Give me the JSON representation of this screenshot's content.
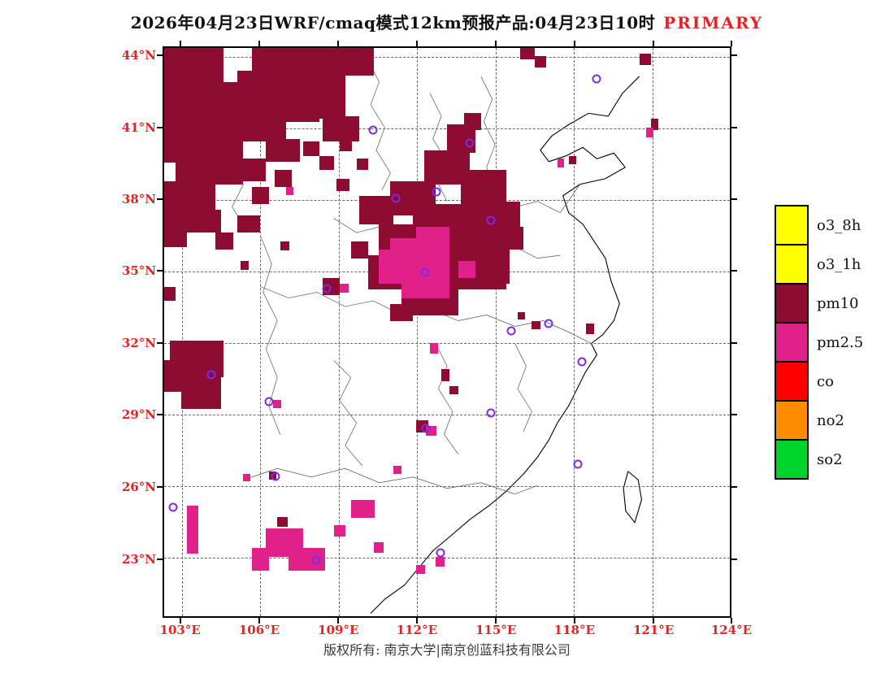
{
  "title": {
    "text": "2026年04月23日WRF/cmaq模式12km预报产品:04月23日10时",
    "highlight": "PRIMARY"
  },
  "footer": {
    "text": "版权所有: 南京大学|南京创蓝科技有限公司"
  },
  "axes": {
    "lat_labels": [
      {
        "text": "44°N",
        "y": 1.6
      },
      {
        "text": "41°N",
        "y": 14.2
      },
      {
        "text": "38°N",
        "y": 26.7
      },
      {
        "text": "35°N",
        "y": 39.3
      },
      {
        "text": "32°N",
        "y": 51.9
      },
      {
        "text": "29°N",
        "y": 64.5
      },
      {
        "text": "26°N",
        "y": 77.1
      },
      {
        "text": "23°N",
        "y": 89.7
      }
    ],
    "lon_labels": [
      {
        "text": "103°E",
        "x": 3.1
      },
      {
        "text": "106°E",
        "x": 17.0
      },
      {
        "text": "109°E",
        "x": 30.9
      },
      {
        "text": "112°E",
        "x": 44.7
      },
      {
        "text": "115°E",
        "x": 58.6
      },
      {
        "text": "118°E",
        "x": 72.4
      },
      {
        "text": "121°E",
        "x": 86.3
      },
      {
        "text": "124°E",
        "x": 100.0
      }
    ]
  },
  "legend": {
    "items": [
      {
        "label": "o3_8h",
        "color": "#ffff00"
      },
      {
        "label": "o3_1h",
        "color": "#ffff00"
      },
      {
        "label": "pm10",
        "color": "#8e0b32"
      },
      {
        "label": "pm2.5",
        "color": "#e0218a"
      },
      {
        "label": "co",
        "color": "#ff0000"
      },
      {
        "label": "no2",
        "color": "#ff8c00"
      },
      {
        "label": "so2",
        "color": "#00d42a"
      }
    ]
  },
  "map": {
    "colors": {
      "pm10": "#8e0b32",
      "pm25": "#e0218a",
      "station": "#7d2ae8",
      "axis_text": "#e62222"
    },
    "patches": {
      "pm10": [
        [
          0,
          0,
          10.5,
          6.5
        ],
        [
          0,
          6,
          14,
          8.5
        ],
        [
          15.5,
          0,
          21.5,
          4.8
        ],
        [
          13,
          4,
          19,
          5
        ],
        [
          9.5,
          8,
          18,
          5
        ],
        [
          5.5,
          11.5,
          16,
          5
        ],
        [
          0,
          14,
          14,
          6.2
        ],
        [
          2,
          19,
          12,
          5
        ],
        [
          0,
          23.5,
          9,
          6
        ],
        [
          3,
          28.5,
          7,
          4
        ],
        [
          0,
          29,
          4,
          6
        ],
        [
          23.5,
          8.5,
          8.5,
          4
        ],
        [
          28,
          12,
          6.5,
          4.5
        ],
        [
          18,
          16,
          6,
          4
        ],
        [
          12,
          19.5,
          6,
          4
        ],
        [
          19.5,
          21.5,
          3,
          3
        ],
        [
          15.5,
          24.5,
          3,
          3
        ],
        [
          9,
          32.5,
          3.2,
          3
        ],
        [
          13,
          29.5,
          4,
          3
        ],
        [
          24.5,
          16.5,
          3,
          2.5
        ],
        [
          27.5,
          19,
          2.5,
          2.5
        ],
        [
          31,
          16,
          2.2,
          2.2
        ],
        [
          34,
          19.5,
          2,
          2
        ],
        [
          30.5,
          23,
          2.2,
          2.2
        ],
        [
          63,
          0,
          2.5,
          2
        ],
        [
          65.5,
          1.5,
          2,
          2
        ],
        [
          84,
          1,
          2,
          2
        ],
        [
          86,
          12.5,
          1.3,
          2
        ],
        [
          71.5,
          19,
          1.4,
          1.4
        ],
        [
          50,
          13.5,
          5,
          5
        ],
        [
          53,
          11.5,
          3,
          3
        ],
        [
          46,
          18,
          8,
          6
        ],
        [
          52.5,
          21.5,
          8,
          6
        ],
        [
          40,
          23.5,
          8,
          6
        ],
        [
          34.5,
          26,
          6,
          5
        ],
        [
          44,
          27.5,
          14,
          7.5
        ],
        [
          56.5,
          27,
          6.5,
          8
        ],
        [
          38,
          31,
          8,
          6
        ],
        [
          48,
          34.5,
          12.5,
          8
        ],
        [
          36,
          36.5,
          6,
          6
        ],
        [
          42,
          42,
          10,
          5
        ],
        [
          56,
          35.5,
          5,
          6
        ],
        [
          60.5,
          31.5,
          3,
          4
        ],
        [
          28,
          40.5,
          3,
          3
        ],
        [
          33,
          34,
          3,
          3
        ],
        [
          40,
          45,
          4,
          3
        ],
        [
          1,
          51.5,
          9.5,
          6.5
        ],
        [
          3,
          57.5,
          7,
          6
        ],
        [
          0,
          55,
          3,
          5.5
        ],
        [
          0,
          42,
          2,
          2.5
        ],
        [
          13.5,
          37.5,
          1.5,
          1.5
        ],
        [
          20.5,
          34,
          1.6,
          1.6
        ],
        [
          44.5,
          65.5,
          2.2,
          2.2
        ],
        [
          49,
          56.5,
          1.5,
          2.2
        ],
        [
          50.5,
          59.5,
          1.5,
          1.5
        ],
        [
          65,
          48,
          1.5,
          1.5
        ],
        [
          74.5,
          48.5,
          1.5,
          1.8
        ],
        [
          18.5,
          74.5,
          1.4,
          1.4
        ],
        [
          20,
          82.5,
          1.8,
          1.8
        ],
        [
          62.5,
          46.5,
          1.3,
          1.3
        ]
      ],
      "pm25": [
        [
          40,
          33.5,
          10.5,
          6.5
        ],
        [
          42,
          39.5,
          8.5,
          4.5
        ],
        [
          38,
          35.5,
          4,
          6
        ],
        [
          44.5,
          31.5,
          6,
          3
        ],
        [
          52,
          37.5,
          3,
          3
        ],
        [
          21.5,
          24.5,
          1.4,
          1.4
        ],
        [
          85.2,
          14,
          1.3,
          1.8
        ],
        [
          69.5,
          19.5,
          1.2,
          1.5
        ],
        [
          4,
          80.5,
          2,
          8.5
        ],
        [
          18,
          84.5,
          6.5,
          5
        ],
        [
          22,
          88,
          6.5,
          4
        ],
        [
          15.5,
          88,
          3,
          4
        ],
        [
          33,
          79.5,
          4.2,
          3.2
        ],
        [
          30,
          84,
          2,
          2
        ],
        [
          37,
          87,
          1.8,
          1.8
        ],
        [
          46.3,
          66.5,
          1.8,
          1.8
        ],
        [
          48,
          89.5,
          1.5,
          1.8
        ],
        [
          44.5,
          91,
          1.6,
          1.6
        ],
        [
          19.3,
          62,
          1.4,
          1.4
        ],
        [
          14,
          75,
          1.3,
          1.3
        ],
        [
          40.5,
          73.5,
          1.5,
          1.5
        ],
        [
          31,
          41.5,
          1.6,
          1.6
        ],
        [
          47,
          52,
          1.4,
          1.8
        ]
      ]
    },
    "stations": [
      [
        76.4,
        5.4
      ],
      [
        36.9,
        14.4
      ],
      [
        54.0,
        16.8
      ],
      [
        41.0,
        26.5
      ],
      [
        48.1,
        25.3
      ],
      [
        57.7,
        30.3
      ],
      [
        46.1,
        39.5
      ],
      [
        28.7,
        42.4
      ],
      [
        61.4,
        49.8
      ],
      [
        67.9,
        48.5
      ],
      [
        73.9,
        55.2
      ],
      [
        8.4,
        57.5
      ],
      [
        18.6,
        62.3
      ],
      [
        57.7,
        64.2
      ],
      [
        46.3,
        66.9
      ],
      [
        73.1,
        73.3
      ],
      [
        19.7,
        75.4
      ],
      [
        1.6,
        80.8
      ],
      [
        26.9,
        90.2
      ],
      [
        48.9,
        88.8
      ]
    ],
    "coastline": [
      [
        [
          84,
          5
        ],
        [
          81,
          8
        ],
        [
          78.5,
          12
        ],
        [
          75,
          11.5
        ],
        [
          71.5,
          13.5
        ],
        [
          68.5,
          15.5
        ],
        [
          66.5,
          18
        ],
        [
          68,
          20
        ],
        [
          71,
          19
        ],
        [
          74,
          17.5
        ],
        [
          76.5,
          19.5
        ],
        [
          79.5,
          18.5
        ],
        [
          81.5,
          21
        ],
        [
          78,
          23
        ],
        [
          73.5,
          24
        ],
        [
          70.5,
          26
        ],
        [
          71.5,
          29
        ],
        [
          74,
          31
        ],
        [
          76,
          34
        ],
        [
          78,
          37
        ],
        [
          79,
          41
        ],
        [
          80.5,
          45
        ],
        [
          79.5,
          48
        ],
        [
          77.5,
          50.5
        ],
        [
          75.5,
          52
        ],
        [
          76.5,
          54
        ],
        [
          74.5,
          57
        ],
        [
          73,
          60
        ],
        [
          71.5,
          63
        ],
        [
          69.5,
          66
        ],
        [
          68,
          69
        ],
        [
          66,
          72
        ],
        [
          63.5,
          75
        ],
        [
          60.5,
          78
        ],
        [
          57.5,
          80.5
        ],
        [
          54,
          83
        ],
        [
          50.5,
          86
        ],
        [
          47.5,
          88.5
        ],
        [
          45,
          91.5
        ],
        [
          42.5,
          94.5
        ],
        [
          39,
          97
        ],
        [
          36.5,
          99.5
        ]
      ],
      [
        [
          82,
          74.5
        ],
        [
          83.8,
          76
        ],
        [
          84.4,
          79.5
        ],
        [
          83.2,
          83.5
        ],
        [
          81.6,
          81.5
        ],
        [
          81.2,
          77.5
        ],
        [
          82,
          74.5
        ]
      ]
    ],
    "borders": [
      [
        [
          36,
          2
        ],
        [
          38,
          6
        ],
        [
          36.5,
          10
        ],
        [
          39,
          14
        ],
        [
          37.5,
          18
        ],
        [
          40,
          22
        ],
        [
          38.5,
          25
        ]
      ],
      [
        [
          47,
          8
        ],
        [
          49,
          12
        ],
        [
          47.5,
          16
        ],
        [
          50,
          20
        ],
        [
          48.5,
          24
        ],
        [
          50,
          27
        ]
      ],
      [
        [
          56,
          5
        ],
        [
          58,
          9
        ],
        [
          56.5,
          13
        ],
        [
          58.5,
          17
        ],
        [
          57,
          21
        ],
        [
          58,
          24
        ]
      ],
      [
        [
          30,
          30
        ],
        [
          34,
          32.5
        ],
        [
          38,
          31.5
        ],
        [
          42,
          34
        ],
        [
          46,
          33
        ],
        [
          50,
          35
        ],
        [
          54,
          34
        ],
        [
          58,
          36
        ],
        [
          62,
          35
        ],
        [
          66,
          37
        ],
        [
          70,
          36.5
        ]
      ],
      [
        [
          17,
          42
        ],
        [
          22,
          44
        ],
        [
          27,
          43
        ],
        [
          32,
          45.5
        ],
        [
          37,
          44.5
        ],
        [
          42,
          47
        ],
        [
          47,
          46
        ],
        [
          52,
          48
        ],
        [
          57,
          47
        ],
        [
          62,
          49
        ],
        [
          67,
          48
        ],
        [
          71.5,
          50
        ],
        [
          75.5,
          52
        ]
      ],
      [
        [
          17,
          33
        ],
        [
          19,
          38
        ],
        [
          17.5,
          43
        ],
        [
          20,
          48
        ],
        [
          18,
          53
        ],
        [
          20,
          58
        ],
        [
          18.5,
          63
        ],
        [
          20.5,
          68
        ]
      ],
      [
        [
          30,
          55
        ],
        [
          33,
          58
        ],
        [
          31,
          62
        ],
        [
          34,
          66
        ],
        [
          32,
          70
        ],
        [
          35,
          73.5
        ]
      ],
      [
        [
          48,
          52
        ],
        [
          50,
          56
        ],
        [
          48.5,
          60
        ],
        [
          51,
          64
        ],
        [
          49.5,
          68
        ],
        [
          52,
          71.5
        ]
      ],
      [
        [
          62,
          52
        ],
        [
          64,
          56
        ],
        [
          62.5,
          60
        ],
        [
          65,
          64
        ],
        [
          63.5,
          67.5
        ]
      ],
      [
        [
          14,
          76
        ],
        [
          20,
          74
        ],
        [
          26,
          75.5
        ],
        [
          32,
          74
        ],
        [
          38,
          76.5
        ],
        [
          44,
          75.5
        ],
        [
          50,
          77.5
        ],
        [
          56,
          76.5
        ],
        [
          62,
          78.5
        ],
        [
          66,
          77
        ]
      ],
      [
        [
          8,
          12
        ],
        [
          12,
          16
        ],
        [
          10,
          20
        ],
        [
          14,
          24
        ],
        [
          12,
          28
        ],
        [
          14,
          31
        ]
      ],
      [
        [
          58,
          26
        ],
        [
          62,
          28
        ],
        [
          66,
          27
        ],
        [
          70,
          29
        ],
        [
          73.5,
          24
        ]
      ]
    ]
  }
}
